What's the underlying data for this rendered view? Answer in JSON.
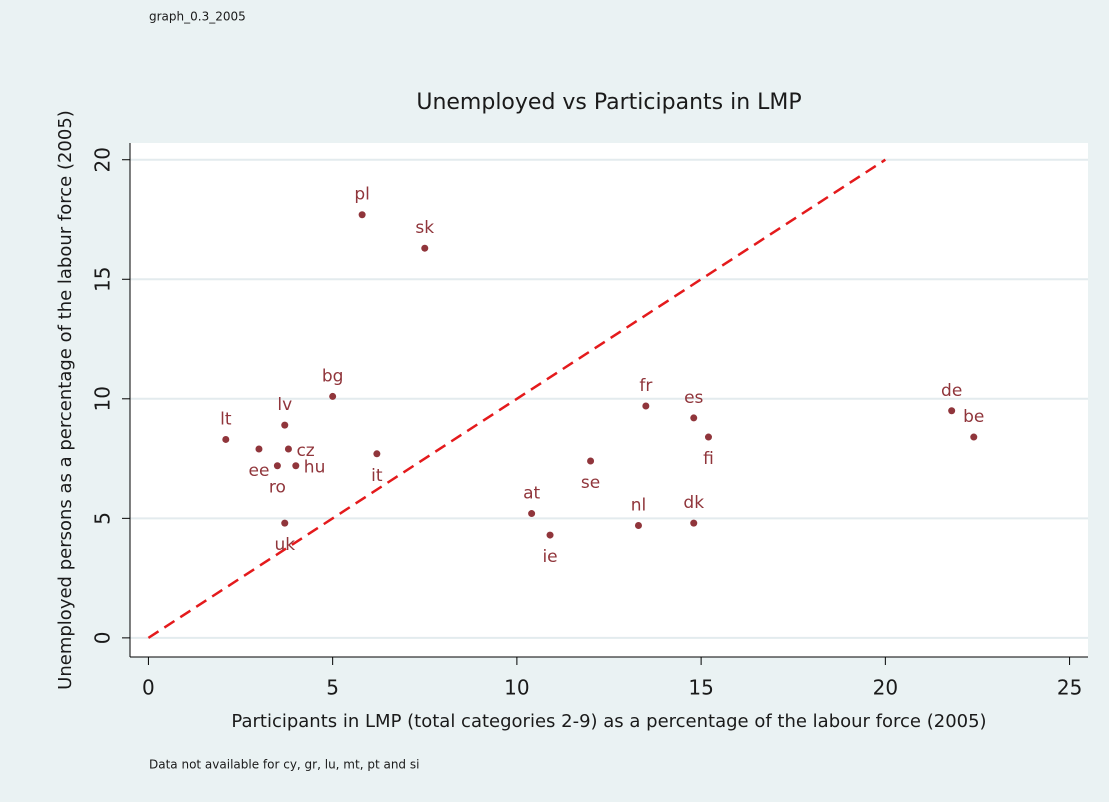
{
  "chart_data": {
    "type": "scatter",
    "note": "graph_0.3_2005",
    "title": "Unemployed vs Participants in LMP",
    "x_label": "Participants in LMP (total categories 2-9) as a percentage of the labour force (2005)",
    "y_label": "Unemployed persons as a percentage of the labour force (2005)",
    "footnote": "Data not available for cy, gr, lu, mt, pt and si",
    "color": "#90353b",
    "xlim": [
      -0.5,
      25.5
    ],
    "xticks": [
      0,
      5,
      10,
      15,
      20,
      25
    ],
    "ylim": [
      -0.8,
      20.7
    ],
    "yticks": [
      0,
      5,
      10,
      15,
      20
    ],
    "grid": true,
    "reference_line": {
      "x": [
        0,
        20
      ],
      "y": [
        0,
        20
      ],
      "color": "#e41a1c",
      "style": "dashed"
    },
    "points": [
      {
        "label": "pl",
        "x": 5.8,
        "y": 17.7,
        "position": "top"
      },
      {
        "label": "sk",
        "x": 7.5,
        "y": 16.3,
        "position": "top"
      },
      {
        "label": "bg",
        "x": 5.0,
        "y": 10.1,
        "position": "top"
      },
      {
        "label": "lt",
        "x": 2.1,
        "y": 8.3,
        "position": "top"
      },
      {
        "label": "lv",
        "x": 3.7,
        "y": 8.9,
        "position": "top"
      },
      {
        "label": "ee",
        "x": 3.0,
        "y": 7.9,
        "position": "bottom"
      },
      {
        "label": "cz",
        "x": 3.8,
        "y": 7.9,
        "position": "right"
      },
      {
        "label": "ro",
        "x": 3.5,
        "y": 7.2,
        "position": "bottom"
      },
      {
        "label": "hu",
        "x": 4.0,
        "y": 7.2,
        "position": "right"
      },
      {
        "label": "it",
        "x": 6.2,
        "y": 7.7,
        "position": "bottom"
      },
      {
        "label": "uk",
        "x": 3.7,
        "y": 4.8,
        "position": "bottom"
      },
      {
        "label": "at",
        "x": 10.4,
        "y": 5.2,
        "position": "top"
      },
      {
        "label": "ie",
        "x": 10.9,
        "y": 4.3,
        "position": "bottom"
      },
      {
        "label": "se",
        "x": 12.0,
        "y": 7.4,
        "position": "bottom"
      },
      {
        "label": "fr",
        "x": 13.5,
        "y": 9.7,
        "position": "top"
      },
      {
        "label": "nl",
        "x": 13.3,
        "y": 4.7,
        "position": "top"
      },
      {
        "label": "es",
        "x": 14.8,
        "y": 9.2,
        "position": "top"
      },
      {
        "label": "dk",
        "x": 14.8,
        "y": 4.8,
        "position": "top"
      },
      {
        "label": "fi",
        "x": 15.2,
        "y": 8.4,
        "position": "bottom"
      },
      {
        "label": "de",
        "x": 21.8,
        "y": 9.5,
        "position": "top"
      },
      {
        "label": "be",
        "x": 22.4,
        "y": 8.4,
        "position": "top"
      }
    ]
  }
}
